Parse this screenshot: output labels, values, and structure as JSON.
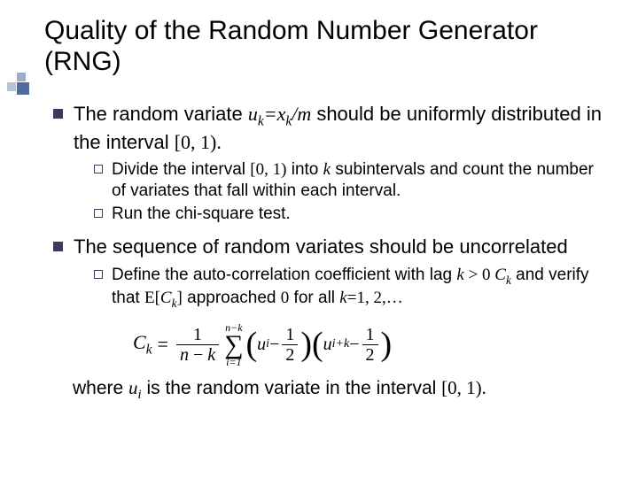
{
  "title": "Quality of the Random Number Generator (RNG)",
  "bullets": [
    {
      "pre": "The random variate ",
      "var1": "u",
      "sub1": "k",
      "mid1": "=",
      "var2": "x",
      "sub2": "k",
      "mid2": "/",
      "var3": "m",
      "post": " should be uniformly distributed in the interval ",
      "interval": "[0, 1).",
      "subs": [
        {
          "pre": "Divide the interval ",
          "interval": "[0, 1)",
          "mid": " into ",
          "kvar": "k",
          "post": " subintervals and count the number of variates that fall within each interval."
        },
        {
          "text": "Run the chi-square test."
        }
      ]
    },
    {
      "text": "The sequence of random variates should be uncorrelated",
      "subs": [
        {
          "pre": "Define the auto-correlation coefficient with lag ",
          "kvar": "k",
          "op": " > ",
          "zero": "0 ",
          "cvar": "C",
          "csub": "k",
          "mid": " and verify that ",
          "expect_open": "E[",
          "ec": "C",
          "ecsub": "k",
          "expect_close": "]",
          "post1": " approached ",
          "zero2": "0",
          "post2": " for all ",
          "kvar2": "k",
          "eqseq": "=1, 2,…"
        }
      ]
    }
  ],
  "formula": {
    "lhs_c": "C",
    "lhs_sub": "k",
    "frac_num": "1",
    "frac_den_left": "n",
    "frac_den_mid": " − ",
    "frac_den_right": "k",
    "sum_top_left": "n",
    "sum_top_mid": "−",
    "sum_top_right": "k",
    "sum_bot": "i=1",
    "p1_u": "u",
    "p1_sub": "i",
    "p1_minus": " − ",
    "p1_half_n": "1",
    "p1_half_d": "2",
    "p2_u": "u",
    "p2_sub": "i+k",
    "p2_minus": " − ",
    "p2_half_n": "1",
    "p2_half_d": "2"
  },
  "after": {
    "pre": "where ",
    "uvar": "u",
    "usub": "i",
    "mid": " is the random variate in the interval ",
    "interval": "[0, 1)."
  },
  "colors": {
    "bullet_dark": "#3b3b60",
    "text": "#000000",
    "bg": "#ffffff"
  },
  "fontsizes": {
    "title": 30,
    "body": 22,
    "sub": 19,
    "formula": 22,
    "after": 21
  }
}
